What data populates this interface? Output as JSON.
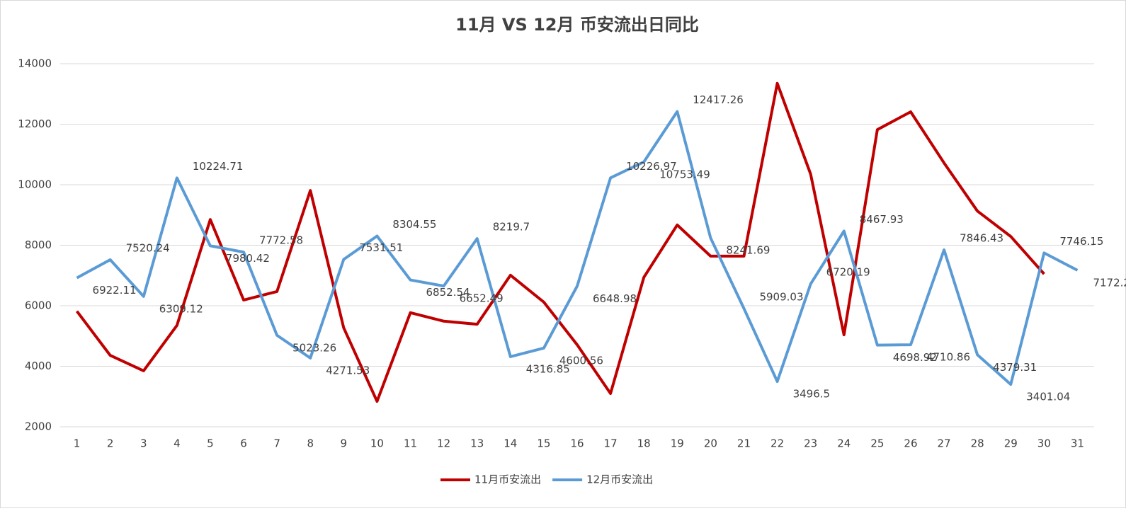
{
  "chart_data": {
    "type": "line",
    "title": "11月 VS 12月 币安流出日同比",
    "categories": [
      "1",
      "2",
      "3",
      "4",
      "5",
      "6",
      "7",
      "8",
      "9",
      "10",
      "11",
      "12",
      "13",
      "14",
      "15",
      "16",
      "17",
      "18",
      "19",
      "20",
      "21",
      "22",
      "23",
      "24",
      "25",
      "26",
      "27",
      "28",
      "29",
      "30",
      "31"
    ],
    "series": [
      {
        "name": "11月币安流出",
        "color": "#c00000",
        "values": [
          5820,
          4360,
          3850,
          5350,
          8850,
          6190,
          6470,
          9810,
          5270,
          2840,
          5770,
          5490,
          5390,
          7010,
          6120,
          4710,
          3100,
          6940,
          8670,
          7640,
          7640,
          13350,
          10350,
          5040,
          11820,
          12410,
          10720,
          9130,
          8290,
          7050,
          null
        ]
      },
      {
        "name": "12月币安流出",
        "color": "#5b9bd5",
        "values": [
          6922.11,
          7520.24,
          6309.12,
          10224.71,
          7980.42,
          7772.58,
          5023.26,
          4271.53,
          7531.51,
          8304.55,
          6852.54,
          6652.49,
          8219.7,
          4316.85,
          4600.56,
          6648.98,
          10226.97,
          10753.49,
          12417.26,
          8241.69,
          5909.03,
          3496.5,
          6720.19,
          8467.93,
          4698.92,
          4710.86,
          7846.43,
          4379.31,
          3401.04,
          7746.15,
          7172.2
        ],
        "data_labels": true
      }
    ],
    "ylim": [
      2000,
      14000
    ],
    "yticks": [
      2000,
      4000,
      6000,
      8000,
      10000,
      12000,
      14000
    ],
    "grid": true,
    "legend": "bottom"
  }
}
